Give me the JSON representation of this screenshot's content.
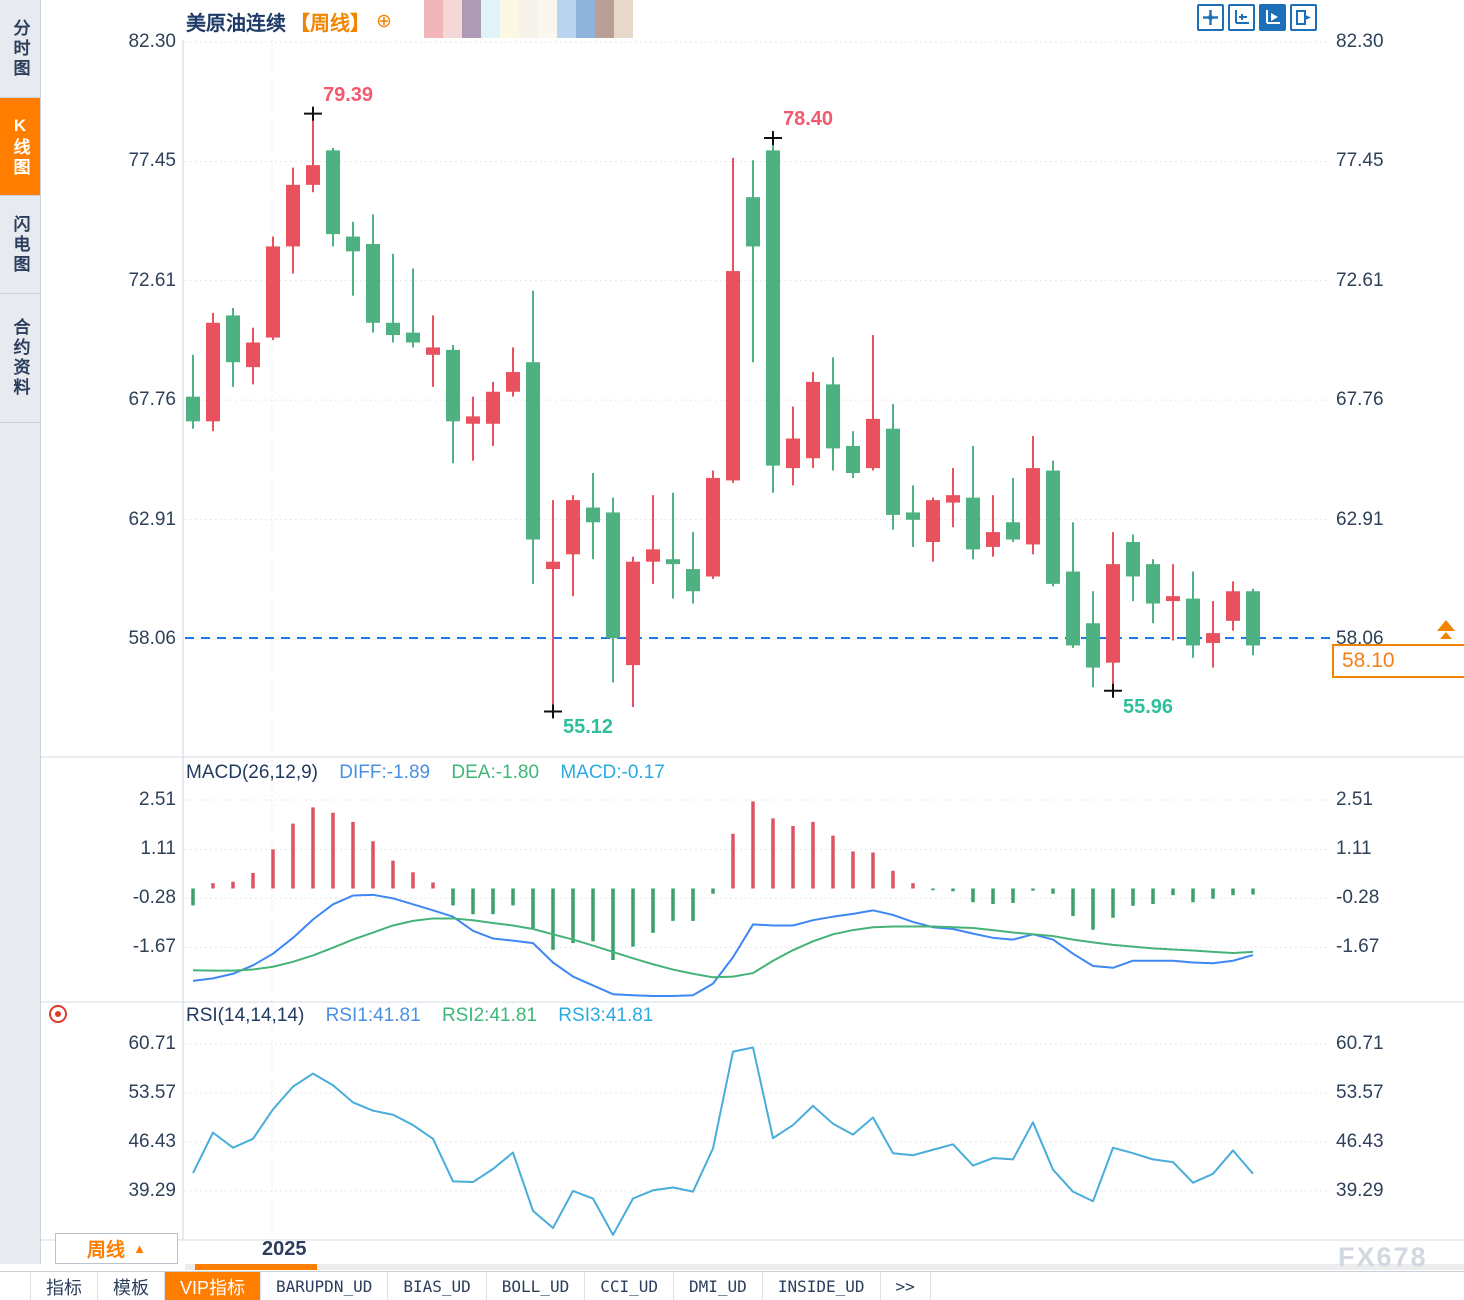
{
  "header": {
    "symbol": "美原油连续",
    "period_tag": "【周线】",
    "add_icon": "⊕"
  },
  "sidebar": {
    "items": [
      {
        "label": "分时图",
        "active": false
      },
      {
        "label": "K线图",
        "active": true
      },
      {
        "label": "闪电图",
        "active": false
      },
      {
        "label": "合约资料",
        "active": false
      }
    ]
  },
  "topright_icons": [
    "pan-crosshair-icon",
    "scale-axis-icon",
    "auto-scale-icon",
    "shift-right-icon"
  ],
  "mosaic_colors": [
    "#f0b6ba",
    "#f6d7d7",
    "#ae9ab4",
    "#dff3f9",
    "#fdf8e4",
    "#f6f2ec",
    "#fbf7ef",
    "#b9d4ee",
    "#8fb4dc",
    "#b99f96",
    "#e6d9c9"
  ],
  "price_tag": {
    "value": "58.10"
  },
  "period_box": {
    "label": "周线",
    "arrow": "▲"
  },
  "x_axis": {
    "year_label": "2025"
  },
  "watermark": "FX678",
  "toolbar": {
    "tabs": [
      {
        "label": "指标",
        "active": false,
        "mono": false
      },
      {
        "label": "模板",
        "active": false,
        "mono": false
      },
      {
        "label": "VIP指标",
        "active": true,
        "mono": false
      },
      {
        "label": "BARUPDN_UD",
        "active": false,
        "mono": true
      },
      {
        "label": "BIAS_UD",
        "active": false,
        "mono": true
      },
      {
        "label": "BOLL_UD",
        "active": false,
        "mono": true
      },
      {
        "label": "CCI_UD",
        "active": false,
        "mono": true
      },
      {
        "label": "DMI_UD",
        "active": false,
        "mono": true
      },
      {
        "label": "INSIDE_UD",
        "active": false,
        "mono": true
      },
      {
        "label": ">>",
        "active": false,
        "mono": true
      }
    ]
  },
  "indicator_labels": {
    "macd": {
      "name": "MACD(26,12,9)",
      "diff": "DIFF:-1.89",
      "dea": "DEA:-1.80",
      "macd": "MACD:-0.17"
    },
    "rsi": {
      "name": "RSI(14,14,14)",
      "rsi1": "RSI1:41.81",
      "rsi2": "RSI2:41.81",
      "rsi3": "RSI3:41.81"
    }
  },
  "chart_data": {
    "type": "candlestick",
    "title": "美原油连续 周线 (WTI crude continuous, weekly)",
    "up_color": "#e9515e",
    "down_color": "#4eb182",
    "legend_note": "red = up week, green = down week (Chinese convention)",
    "main_axis": {
      "labels": [
        82.3,
        77.45,
        72.61,
        67.76,
        62.91,
        58.06
      ],
      "current_price_line": 58.1
    },
    "candles_ohlc": [
      [
        67.9,
        69.6,
        66.6,
        66.9
      ],
      [
        66.9,
        71.3,
        66.5,
        70.9
      ],
      [
        71.2,
        71.5,
        68.3,
        69.3
      ],
      [
        69.1,
        70.7,
        68.4,
        70.1
      ],
      [
        70.3,
        74.4,
        70.2,
        74.0
      ],
      [
        74.0,
        77.2,
        72.9,
        76.5
      ],
      [
        76.5,
        79.39,
        76.2,
        77.3
      ],
      [
        77.9,
        78.0,
        74.0,
        74.5
      ],
      [
        74.4,
        75.0,
        72.0,
        73.8
      ],
      [
        74.1,
        75.3,
        70.5,
        70.9
      ],
      [
        70.9,
        73.7,
        70.1,
        70.4
      ],
      [
        70.5,
        73.1,
        69.9,
        70.1
      ],
      [
        69.6,
        71.2,
        68.3,
        69.9
      ],
      [
        69.8,
        70.0,
        65.2,
        66.9
      ],
      [
        66.8,
        67.9,
        65.3,
        67.1
      ],
      [
        66.8,
        68.5,
        65.9,
        68.1
      ],
      [
        68.1,
        69.9,
        67.9,
        68.9
      ],
      [
        69.3,
        72.2,
        60.3,
        62.1
      ],
      [
        60.9,
        63.7,
        55.12,
        61.2
      ],
      [
        61.5,
        63.9,
        59.8,
        63.7
      ],
      [
        63.4,
        64.8,
        61.3,
        62.8
      ],
      [
        63.2,
        63.8,
        56.3,
        58.1
      ],
      [
        57.0,
        61.4,
        55.3,
        61.2
      ],
      [
        61.2,
        63.9,
        60.3,
        61.7
      ],
      [
        61.3,
        64.0,
        59.7,
        61.1
      ],
      [
        60.9,
        62.4,
        59.5,
        60.0
      ],
      [
        60.6,
        64.9,
        60.5,
        64.6
      ],
      [
        64.5,
        77.6,
        64.4,
        73.0
      ],
      [
        76.0,
        77.5,
        69.3,
        74.0
      ],
      [
        77.9,
        78.4,
        64.0,
        65.1
      ],
      [
        65.0,
        67.5,
        64.3,
        66.2
      ],
      [
        65.4,
        68.9,
        65.0,
        68.5
      ],
      [
        68.4,
        69.5,
        64.9,
        65.8
      ],
      [
        65.9,
        66.5,
        64.6,
        64.8
      ],
      [
        65.0,
        70.4,
        64.9,
        67.0
      ],
      [
        66.6,
        67.6,
        62.5,
        63.1
      ],
      [
        63.2,
        64.3,
        61.8,
        62.9
      ],
      [
        62.0,
        63.8,
        61.2,
        63.7
      ],
      [
        63.6,
        65.0,
        62.6,
        63.9
      ],
      [
        63.8,
        65.9,
        61.3,
        61.7
      ],
      [
        61.8,
        63.9,
        61.4,
        62.4
      ],
      [
        62.8,
        64.6,
        62.0,
        62.1
      ],
      [
        61.9,
        66.3,
        61.5,
        65.0
      ],
      [
        64.9,
        65.3,
        60.2,
        60.3
      ],
      [
        60.8,
        62.8,
        57.7,
        57.8
      ],
      [
        58.7,
        60.0,
        56.1,
        56.9
      ],
      [
        57.1,
        62.4,
        55.96,
        61.1
      ],
      [
        62.0,
        62.3,
        59.6,
        60.6
      ],
      [
        61.1,
        61.3,
        58.7,
        59.5
      ],
      [
        59.6,
        61.1,
        58.0,
        59.8
      ],
      [
        59.7,
        60.8,
        57.3,
        57.8
      ],
      [
        57.9,
        59.6,
        56.9,
        58.3
      ],
      [
        58.8,
        60.4,
        58.4,
        60.0
      ],
      [
        60.0,
        60.1,
        57.4,
        57.8
      ]
    ],
    "annotations": [
      {
        "index": 6,
        "type": "high",
        "text": "79.39"
      },
      {
        "index": 29,
        "type": "high",
        "text": "78.40"
      },
      {
        "index": 18,
        "type": "low",
        "text": "55.12"
      },
      {
        "index": 46,
        "type": "low",
        "text": "55.96"
      }
    ],
    "macd": {
      "params": "26,12,9",
      "axis": [
        2.51,
        1.11,
        -0.28,
        -1.67
      ],
      "hist": [
        -0.48,
        0.15,
        0.19,
        0.44,
        1.11,
        1.84,
        2.3,
        2.15,
        1.89,
        1.34,
        0.79,
        0.46,
        0.17,
        -0.48,
        -0.73,
        -0.73,
        -0.48,
        -1.16,
        -1.74,
        -1.55,
        -1.5,
        -2.03,
        -1.65,
        -1.26,
        -0.92,
        -0.92,
        -0.15,
        1.55,
        2.47,
        1.99,
        1.77,
        1.89,
        1.5,
        1.05,
        1.02,
        0.5,
        0.15,
        -0.05,
        -0.08,
        -0.39,
        -0.44,
        -0.41,
        -0.06,
        -0.15,
        -0.78,
        -1.17,
        -0.83,
        -0.49,
        -0.44,
        -0.19,
        -0.39,
        -0.29,
        -0.19,
        -0.17
      ],
      "diff": [
        -2.62,
        -2.55,
        -2.42,
        -2.18,
        -1.85,
        -1.4,
        -0.88,
        -0.45,
        -0.2,
        -0.18,
        -0.28,
        -0.45,
        -0.62,
        -0.8,
        -1.2,
        -1.42,
        -1.48,
        -1.55,
        -2.1,
        -2.5,
        -2.75,
        -3.0,
        -3.03,
        -3.05,
        -3.05,
        -3.03,
        -2.7,
        -1.95,
        -1.02,
        -1.05,
        -1.05,
        -0.9,
        -0.8,
        -0.72,
        -0.62,
        -0.75,
        -0.95,
        -1.1,
        -1.15,
        -1.28,
        -1.4,
        -1.45,
        -1.3,
        -1.45,
        -1.85,
        -2.2,
        -2.25,
        -2.05,
        -2.05,
        -2.05,
        -2.1,
        -2.12,
        -2.05,
        -1.89
      ],
      "dea": [
        -2.32,
        -2.33,
        -2.33,
        -2.3,
        -2.22,
        -2.08,
        -1.9,
        -1.68,
        -1.45,
        -1.25,
        -1.05,
        -0.92,
        -0.85,
        -0.85,
        -0.9,
        -0.98,
        -1.05,
        -1.15,
        -1.3,
        -1.45,
        -1.62,
        -1.8,
        -1.98,
        -2.15,
        -2.3,
        -2.42,
        -2.52,
        -2.5,
        -2.4,
        -2.05,
        -1.75,
        -1.5,
        -1.3,
        -1.18,
        -1.1,
        -1.08,
        -1.08,
        -1.08,
        -1.1,
        -1.12,
        -1.18,
        -1.25,
        -1.3,
        -1.35,
        -1.45,
        -1.53,
        -1.6,
        -1.65,
        -1.7,
        -1.73,
        -1.76,
        -1.8,
        -1.83,
        -1.8
      ]
    },
    "rsi": {
      "params": "14,14,14",
      "axis": [
        60.71,
        53.57,
        46.43,
        39.29
      ],
      "values": [
        41.9,
        47.8,
        45.6,
        46.9,
        51.2,
        54.5,
        56.4,
        54.7,
        52.2,
        51.0,
        50.4,
        48.9,
        46.9,
        40.7,
        40.6,
        42.5,
        44.9,
        36.4,
        33.9,
        39.3,
        38.2,
        32.9,
        38.2,
        39.4,
        39.8,
        39.2,
        45.5,
        59.6,
        60.2,
        47.0,
        48.9,
        51.7,
        49.1,
        47.5,
        50.0,
        44.8,
        44.5,
        45.3,
        46.1,
        43.0,
        44.1,
        43.9,
        49.3,
        42.4,
        39.2,
        37.8,
        45.6,
        44.8,
        43.9,
        43.5,
        40.5,
        41.8,
        45.2,
        41.81
      ]
    }
  }
}
